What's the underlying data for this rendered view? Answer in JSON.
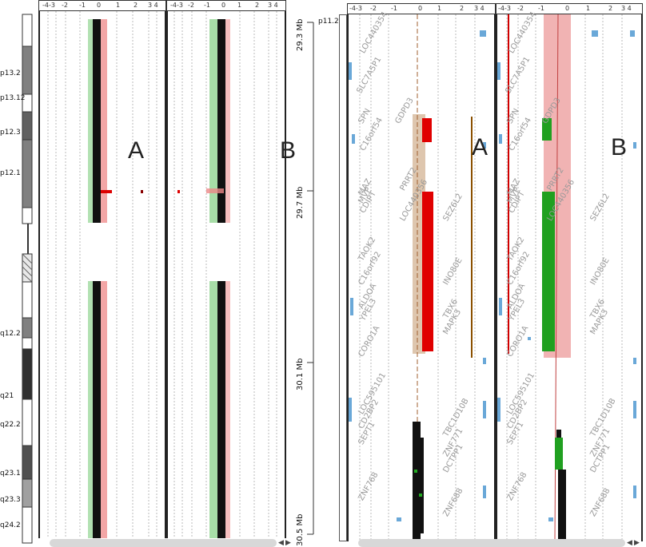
{
  "scale_ticks": [
    "-4-3",
    "-2",
    "-1",
    "0",
    "1",
    "2",
    "3 4"
  ],
  "chromosome": {
    "bands": [
      "p13.2",
      "p13.12",
      "p12.3",
      "p12.1",
      "q12.2",
      "q21",
      "q22.2",
      "q23.1",
      "q23.3",
      "q24.2"
    ],
    "zoom_band": "p11.2"
  },
  "positions": [
    "29.3 Mb",
    "29.7 Mb",
    "30.1 Mb",
    "30.5 Mb"
  ],
  "sample_labels": {
    "left_a": "A",
    "left_b": "B",
    "right_a": "A",
    "right_b": "B"
  },
  "genes_a": [
    "LOC440354",
    "SLC7A5P1",
    "SPN",
    "C16orf54",
    "GDPD3",
    "PRRT2",
    "MAZ",
    "MVP",
    "CDIPT",
    "LOC440356",
    "TAOK2",
    "C16orf92",
    "ALDOA",
    "YPEL3",
    "INO80E",
    "SEZ6L2",
    "TBX6",
    "MAPK3",
    "CORO1A",
    "LOC595101",
    "CD2BP2",
    "SEPT1",
    "TBC1D10B",
    "ZNF771",
    "DCTPP1",
    "ZNF768",
    "ZNF688"
  ],
  "genes_b": [
    "LOC440354",
    "SLC7A5P1",
    "SPN",
    "C16orf54",
    "GDPD3",
    "PRRT2",
    "MAZ",
    "MVP",
    "CDIPT",
    "LOC440356",
    "TAOK2",
    "C16orf92",
    "ALDOA",
    "YPEL3",
    "INO80E",
    "SEZ6L2",
    "TBX6",
    "MAPK3",
    "CORO1A",
    "LOC595101",
    "CD2BP2",
    "SEPT1",
    "TBC1D10B",
    "ZNF771",
    "DCTPP1",
    "ZNF768",
    "ZNF688"
  ],
  "colors": {
    "gain": "#e00000",
    "loss": "#20a020",
    "normal": "#000000",
    "highlight_a": "#c8a078",
    "highlight_b": "#e88080",
    "gene_box": "#6aa8d8"
  }
}
